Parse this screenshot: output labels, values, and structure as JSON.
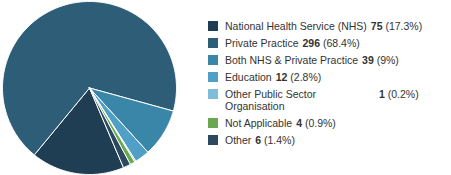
{
  "chart_data": {
    "type": "pie",
    "categories": [
      "National Health Service (NHS)",
      "Private Practice",
      "Both NHS & Private Practice",
      "Education",
      "Other Public Sector Organisation",
      "Not Applicable",
      "Other"
    ],
    "values": [
      75,
      296,
      39,
      12,
      1,
      4,
      6
    ],
    "percent_labels": [
      "(17.3%)",
      "(68.4%)",
      "(9%)",
      "(2.8%)",
      "(0.2%)",
      "(0.9%)",
      "(1.4%)"
    ],
    "colors": [
      "#1f3e54",
      "#2e5d78",
      "#3a86a8",
      "#4f9fc6",
      "#7fbdd9",
      "#6aa84f",
      "#2b4a60"
    ],
    "legend": "right"
  }
}
